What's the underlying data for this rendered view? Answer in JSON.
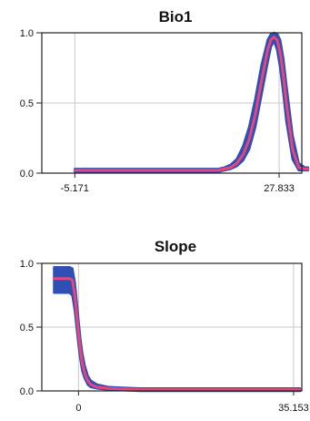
{
  "colors": {
    "mean_line": "#e8457a",
    "band": "#2f4fb5",
    "grid": "#c8c8c8",
    "frame": "#222222",
    "background": "#ffffff"
  },
  "chart_data": [
    {
      "type": "line",
      "title": "Bio1",
      "xlabel": "",
      "ylabel": "",
      "xlim": [
        -10.5,
        31.5
      ],
      "ylim": [
        0,
        1
      ],
      "xtick_labels": [
        "-5.171",
        "27.833"
      ],
      "xtick_values": [
        -5.171,
        27.833
      ],
      "ytick_labels": [
        "0.0",
        "0.5",
        "1.0"
      ],
      "ytick_values": [
        0,
        0.5,
        1.0
      ],
      "grid": true,
      "series": [
        {
          "role": "mean",
          "x": [
            -5.171,
            0,
            5,
            10,
            15,
            18,
            19,
            20,
            21,
            22,
            23,
            24,
            25,
            26,
            26.5,
            27,
            27.5,
            28,
            28.5,
            29,
            30,
            31,
            32,
            32.5
          ],
          "y": [
            0.02,
            0.02,
            0.02,
            0.02,
            0.02,
            0.02,
            0.03,
            0.04,
            0.07,
            0.13,
            0.24,
            0.42,
            0.66,
            0.88,
            0.95,
            0.97,
            0.95,
            0.86,
            0.7,
            0.5,
            0.17,
            0.04,
            0.03,
            0.03
          ]
        },
        {
          "role": "band",
          "x": [
            -5.171,
            0,
            5,
            10,
            15,
            18,
            19,
            20,
            21,
            22,
            23,
            24,
            25,
            26,
            26.5,
            27,
            27.5,
            28,
            28.5,
            29,
            30,
            31,
            32,
            32.5
          ],
          "upper": [
            0.03,
            0.03,
            0.03,
            0.03,
            0.03,
            0.03,
            0.04,
            0.06,
            0.1,
            0.19,
            0.33,
            0.53,
            0.77,
            0.95,
            0.99,
            1.0,
            0.99,
            0.95,
            0.82,
            0.63,
            0.27,
            0.07,
            0.04,
            0.04
          ],
          "lower": [
            0.01,
            0.01,
            0.01,
            0.01,
            0.01,
            0.01,
            0.02,
            0.03,
            0.05,
            0.09,
            0.17,
            0.33,
            0.56,
            0.79,
            0.9,
            0.94,
            0.88,
            0.75,
            0.57,
            0.37,
            0.1,
            0.02,
            0.02,
            0.02
          ]
        }
      ]
    },
    {
      "type": "line",
      "title": "Slope",
      "xlabel": "",
      "ylabel": "",
      "xlim": [
        -6,
        36.5
      ],
      "ylim": [
        0,
        1
      ],
      "xtick_labels": [
        "0",
        "35.153"
      ],
      "xtick_values": [
        0,
        35.153
      ],
      "ytick_labels": [
        "0.0",
        "0.5",
        "1.0"
      ],
      "ytick_values": [
        0,
        0.5,
        1.0
      ],
      "grid": true,
      "series": [
        {
          "role": "mean",
          "x": [
            -4,
            -3,
            -2,
            -1.5,
            -1,
            -0.6,
            -0.3,
            0,
            0.3,
            0.6,
            1,
            1.5,
            2,
            3,
            5,
            10,
            20,
            30,
            36.2
          ],
          "y": [
            0.88,
            0.88,
            0.88,
            0.88,
            0.87,
            0.75,
            0.6,
            0.45,
            0.32,
            0.22,
            0.14,
            0.08,
            0.05,
            0.03,
            0.02,
            0.01,
            0.01,
            0.01,
            0.01
          ]
        },
        {
          "role": "band",
          "x": [
            -4,
            -3,
            -2,
            -1.5,
            -1,
            -0.6,
            -0.3,
            0,
            0.3,
            0.6,
            1,
            1.5,
            2,
            3,
            5,
            10,
            20,
            30,
            36.2
          ],
          "upper": [
            0.97,
            0.97,
            0.97,
            0.97,
            0.96,
            0.85,
            0.7,
            0.55,
            0.41,
            0.3,
            0.2,
            0.12,
            0.08,
            0.05,
            0.03,
            0.02,
            0.02,
            0.02,
            0.02
          ],
          "lower": [
            0.77,
            0.77,
            0.77,
            0.77,
            0.75,
            0.63,
            0.49,
            0.36,
            0.25,
            0.16,
            0.1,
            0.05,
            0.03,
            0.02,
            0.01,
            0.0,
            0.0,
            0.0,
            0.0
          ]
        }
      ]
    }
  ]
}
